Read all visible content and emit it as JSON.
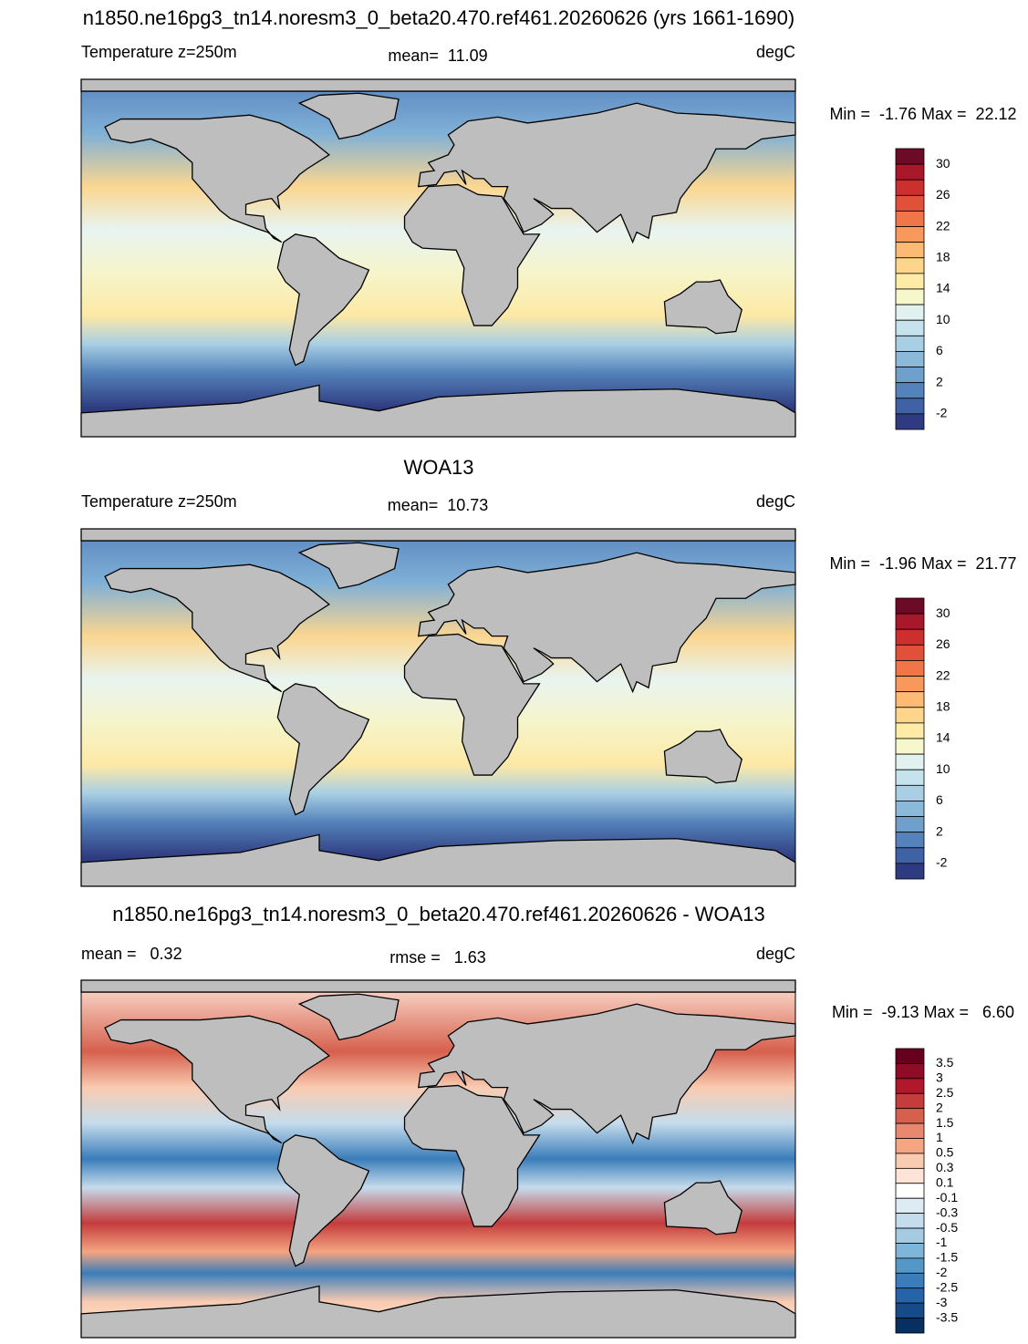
{
  "panels": [
    {
      "title": "n1850.ne16pg3_tn14.noresm3_0_beta20.470.ref461.20260626 (yrs 1661-1690)",
      "left": "Temperature z=250m",
      "center": "mean=  11.09",
      "right": "degC",
      "minmax": "Min =  -1.76 Max =  22.12",
      "colorbar": {
        "labels": [
          30,
          26,
          22,
          18,
          14,
          10,
          6,
          2,
          -2
        ],
        "step": 2,
        "colors": [
          "#6d0a26",
          "#a8172a",
          "#cc2f2c",
          "#e2503a",
          "#f07649",
          "#f8985a",
          "#fcba74",
          "#fdd58b",
          "#feeba5",
          "#f7f7cc",
          "#e1f1f0",
          "#c6e2ed",
          "#a9cfe4",
          "#8bb9d9",
          "#6f9fcb",
          "#5483bb",
          "#3f62a5",
          "#2f3b80"
        ]
      }
    },
    {
      "title": "WOA13",
      "left": "Temperature z=250m",
      "center": "mean=  10.73",
      "right": "degC",
      "minmax": "Min =  -1.96 Max =  21.77",
      "colorbar": {
        "labels": [
          30,
          26,
          22,
          18,
          14,
          10,
          6,
          2,
          -2
        ],
        "step": 2,
        "colors": [
          "#6d0a26",
          "#a8172a",
          "#cc2f2c",
          "#e2503a",
          "#f07649",
          "#f8985a",
          "#fcba74",
          "#fdd58b",
          "#feeba5",
          "#f7f7cc",
          "#e1f1f0",
          "#c6e2ed",
          "#a9cfe4",
          "#8bb9d9",
          "#6f9fcb",
          "#5483bb",
          "#3f62a5",
          "#2f3b80"
        ]
      }
    },
    {
      "title": "n1850.ne16pg3_tn14.noresm3_0_beta20.470.ref461.20260626 - WOA13",
      "left": "mean =   0.32",
      "center": "rmse =   1.63",
      "right": "degC",
      "minmax": "Min =  -9.13 Max =   6.60",
      "colorbar": {
        "labels": [
          3.5,
          3,
          2.5,
          2,
          1.5,
          1,
          0.5,
          0.3,
          0.1,
          -0.1,
          -0.3,
          -0.5,
          -1,
          -1.5,
          -2,
          -2.5,
          -3,
          -3.5
        ],
        "step": 1,
        "colors": [
          "#67001f",
          "#8e0c25",
          "#b2182b",
          "#c43c3c",
          "#d6604d",
          "#e8896f",
          "#f4a582",
          "#f9cbb1",
          "#fde4d6",
          "#ffffff",
          "#deebf2",
          "#c5dcec",
          "#a5cbe2",
          "#7fb5d8",
          "#5598c8",
          "#3a7dba",
          "#2564a8",
          "#164b8a",
          "#053061"
        ]
      }
    }
  ]
}
